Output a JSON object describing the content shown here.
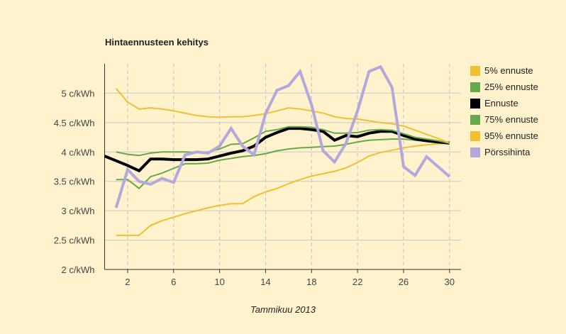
{
  "chart_data": {
    "type": "line",
    "title": "Hintaennusteen kehitys",
    "xlabel": "Tammikuu 2013",
    "ylabel": "",
    "xlim": [
      0,
      31
    ],
    "ylim": [
      2,
      5.5
    ],
    "xticks": [
      2,
      6,
      10,
      14,
      18,
      22,
      26,
      30
    ],
    "yticks": [
      {
        "v": 2,
        "label": "2 c/kWh"
      },
      {
        "v": 2.5,
        "label": "2.5 c/kWh"
      },
      {
        "v": 3,
        "label": "3 c/kWh"
      },
      {
        "v": 3.5,
        "label": "3.5 c/kWh"
      },
      {
        "v": 4,
        "label": "4 c/kWh"
      },
      {
        "v": 4.5,
        "label": "4.5 c/kWh"
      },
      {
        "v": 5,
        "label": "5 c/kWh"
      }
    ],
    "grid": true,
    "legend_position": "right",
    "x": [
      0,
      1,
      2,
      3,
      4,
      5,
      6,
      7,
      8,
      9,
      10,
      11,
      12,
      13,
      14,
      15,
      16,
      17,
      18,
      19,
      20,
      21,
      22,
      23,
      24,
      25,
      26,
      27,
      28,
      29,
      30
    ],
    "series": [
      {
        "name": "5% ennuste",
        "color": "#f0c030",
        "width": 2,
        "values": [
          null,
          2.58,
          2.58,
          2.58,
          2.75,
          2.83,
          2.89,
          2.95,
          3.0,
          3.05,
          3.09,
          3.12,
          3.12,
          3.24,
          3.32,
          3.38,
          3.46,
          3.53,
          3.59,
          3.63,
          3.67,
          3.73,
          3.82,
          3.93,
          3.99,
          4.03,
          4.07,
          4.1,
          4.12,
          4.14,
          4.15
        ]
      },
      {
        "name": "25% ennuste",
        "color": "#66a84a",
        "width": 2,
        "values": [
          null,
          3.53,
          3.53,
          3.38,
          3.58,
          3.64,
          3.72,
          3.8,
          3.8,
          3.81,
          3.86,
          3.89,
          3.92,
          3.94,
          3.97,
          4.02,
          4.05,
          4.07,
          4.08,
          4.09,
          4.1,
          4.13,
          4.17,
          4.2,
          4.21,
          4.22,
          4.22,
          4.2,
          4.18,
          4.16,
          4.15
        ]
      },
      {
        "name": "Ennuste",
        "color": "#000000",
        "width": 4,
        "values": [
          3.93,
          3.85,
          3.77,
          3.68,
          3.88,
          3.88,
          3.87,
          3.87,
          3.87,
          3.88,
          3.93,
          3.98,
          4.02,
          4.1,
          4.25,
          4.33,
          4.4,
          4.4,
          4.38,
          4.35,
          4.2,
          4.28,
          4.26,
          4.32,
          4.35,
          4.35,
          4.28,
          4.22,
          4.19,
          4.17,
          4.15
        ]
      },
      {
        "name": "75% ennuste",
        "color": "#66a84a",
        "width": 2,
        "values": [
          null,
          4.0,
          3.96,
          3.94,
          3.98,
          4.0,
          4.0,
          4.0,
          3.99,
          4.0,
          4.05,
          4.13,
          4.14,
          4.24,
          4.35,
          4.38,
          4.43,
          4.43,
          4.42,
          4.38,
          4.32,
          4.32,
          4.33,
          4.37,
          4.38,
          4.37,
          4.31,
          4.25,
          4.22,
          4.19,
          4.15
        ]
      },
      {
        "name": "95% ennuste",
        "color": "#f0c030",
        "width": 2,
        "values": [
          null,
          5.08,
          4.85,
          4.73,
          4.75,
          4.73,
          4.7,
          4.66,
          4.62,
          4.6,
          4.59,
          4.6,
          4.6,
          4.62,
          4.65,
          4.7,
          4.75,
          4.73,
          4.7,
          4.66,
          4.6,
          4.57,
          4.56,
          4.53,
          4.5,
          4.48,
          4.44,
          4.37,
          4.3,
          4.23,
          4.15
        ]
      },
      {
        "name": "Pörssihinta",
        "color": "#b3a8dc",
        "width": 4,
        "values": [
          null,
          3.05,
          3.7,
          3.5,
          3.45,
          3.55,
          3.48,
          3.95,
          4.0,
          3.98,
          4.1,
          4.4,
          4.1,
          3.95,
          4.65,
          5.05,
          5.13,
          5.37,
          4.8,
          4.02,
          3.83,
          4.15,
          4.7,
          5.37,
          5.45,
          5.1,
          3.75,
          3.6,
          3.92,
          3.75,
          3.58
        ]
      }
    ]
  }
}
